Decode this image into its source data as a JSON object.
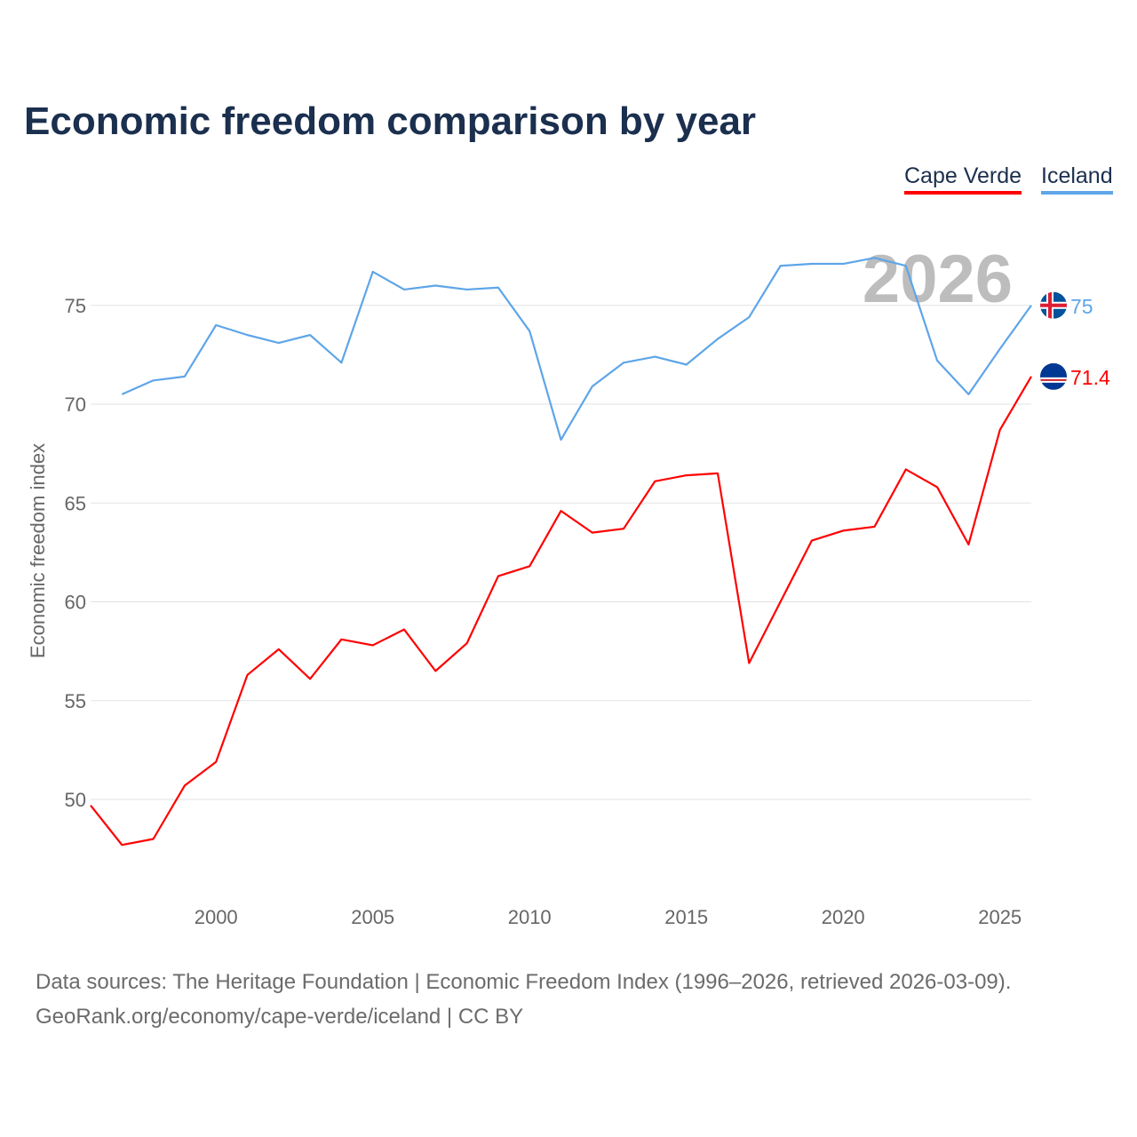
{
  "title": "Economic freedom comparison by year",
  "legend": [
    {
      "label": "Cape Verde",
      "color": "#ff0000"
    },
    {
      "label": "Iceland",
      "color": "#5ea5e8"
    }
  ],
  "footer": {
    "line1": "Data sources: The Heritage Foundation | Economic Freedom Index (1996–2026, retrieved 2026-03-09).",
    "line2": "GeoRank.org/economy/cape-verde/iceland | CC BY"
  },
  "chart_data": {
    "type": "line",
    "title": "Economic freedom comparison by year",
    "xlabel": "",
    "ylabel": "Economic freedom index",
    "xlim": [
      1996,
      2026
    ],
    "ylim": [
      45,
      79
    ],
    "x_ticks": [
      2000,
      2005,
      2010,
      2015,
      2020,
      2025
    ],
    "y_ticks": [
      50,
      55,
      60,
      65,
      70,
      75
    ],
    "year_watermark": "2026",
    "grid": true,
    "series": [
      {
        "name": "Cape Verde",
        "color": "#ff0000",
        "end_label": "71.4",
        "x": [
          1996,
          1997,
          1998,
          1999,
          2000,
          2001,
          2002,
          2003,
          2004,
          2005,
          2006,
          2007,
          2008,
          2009,
          2010,
          2011,
          2012,
          2013,
          2014,
          2015,
          2016,
          2017,
          2018,
          2019,
          2020,
          2021,
          2022,
          2023,
          2024,
          2025,
          2026
        ],
        "values": [
          49.7,
          47.7,
          48.0,
          50.7,
          51.9,
          56.3,
          57.6,
          56.1,
          58.1,
          57.8,
          58.6,
          56.5,
          57.9,
          61.3,
          61.8,
          64.6,
          63.5,
          63.7,
          66.1,
          66.4,
          66.5,
          56.9,
          60.0,
          63.1,
          63.6,
          63.8,
          66.7,
          65.8,
          62.9,
          68.7,
          71.4
        ]
      },
      {
        "name": "Iceland",
        "color": "#5ea5e8",
        "end_label": "75",
        "x": [
          1997,
          1998,
          1999,
          2000,
          2001,
          2002,
          2003,
          2004,
          2005,
          2006,
          2007,
          2008,
          2009,
          2010,
          2011,
          2012,
          2013,
          2014,
          2015,
          2016,
          2017,
          2018,
          2019,
          2020,
          2021,
          2022,
          2023,
          2024,
          2025,
          2026
        ],
        "values": [
          70.5,
          71.2,
          71.4,
          74.0,
          73.5,
          73.1,
          73.5,
          72.1,
          76.7,
          75.8,
          76.0,
          75.8,
          75.9,
          73.7,
          68.2,
          70.9,
          72.1,
          72.4,
          72.0,
          73.3,
          74.4,
          77.0,
          77.1,
          77.1,
          77.4,
          77.0,
          72.2,
          70.5,
          72.8,
          75.0
        ]
      }
    ]
  }
}
